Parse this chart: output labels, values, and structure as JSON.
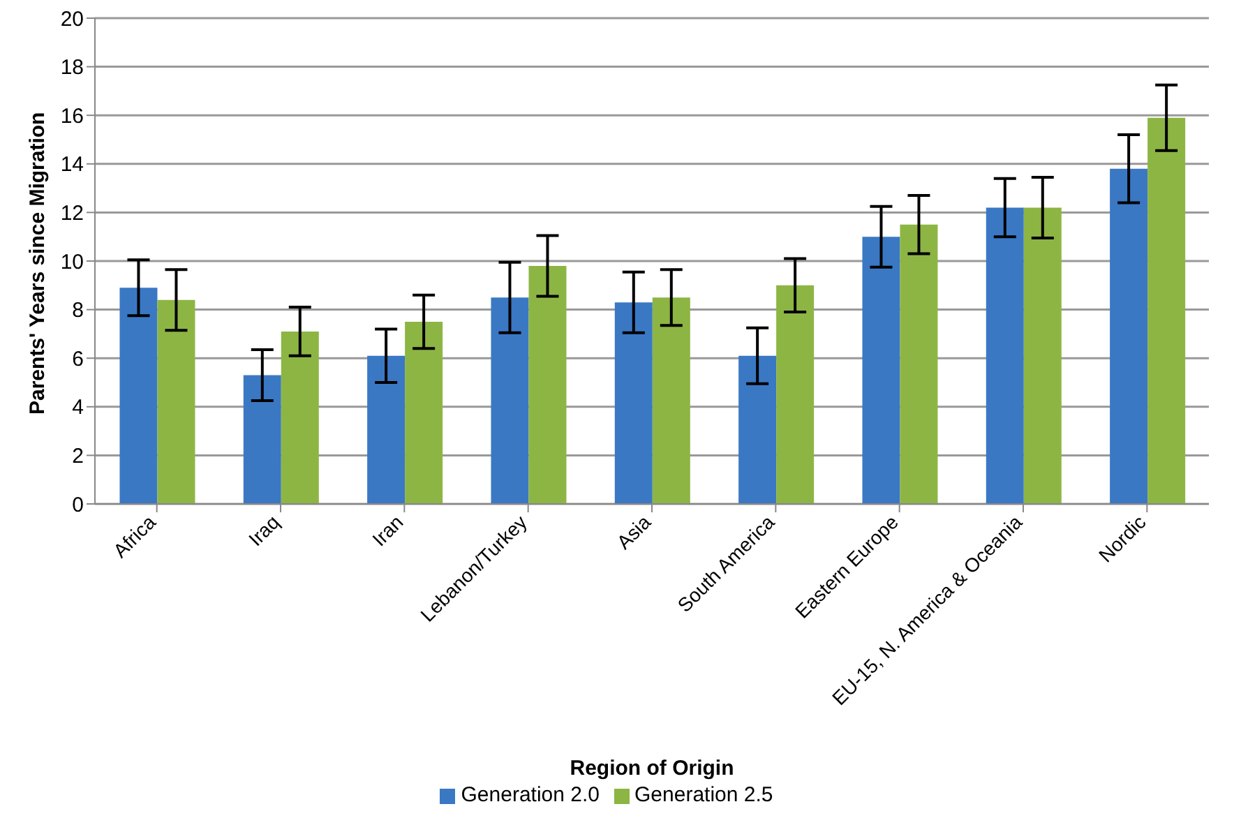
{
  "chart_data": {
    "type": "bar",
    "xlabel": "Region of Origin",
    "ylabel": "Parents' Years since Migration",
    "categories": [
      "Africa",
      "Iraq",
      "Iran",
      "Lebanon/Turkey",
      "Asia",
      "South America",
      "Eastern Europe",
      "EU-15, N. America & Oceania",
      "Nordic"
    ],
    "series": [
      {
        "name": "Generation 2.0",
        "color": "#3a78c4",
        "values": [
          8.9,
          5.3,
          6.1,
          8.5,
          8.3,
          6.1,
          11.0,
          12.2,
          13.8
        ],
        "errors": [
          1.15,
          1.05,
          1.1,
          1.45,
          1.25,
          1.15,
          1.25,
          1.2,
          1.4
        ]
      },
      {
        "name": "Generation 2.5",
        "color": "#8db544",
        "values": [
          8.4,
          7.1,
          7.5,
          9.8,
          8.5,
          9.0,
          11.5,
          12.2,
          15.9
        ],
        "errors": [
          1.25,
          1.0,
          1.1,
          1.25,
          1.15,
          1.1,
          1.2,
          1.25,
          1.35
        ]
      }
    ],
    "ylim": [
      0,
      20
    ],
    "yticks": [
      0,
      2,
      4,
      6,
      8,
      10,
      12,
      14,
      16,
      18,
      20
    ],
    "grid": "y",
    "legend": "bottom"
  }
}
